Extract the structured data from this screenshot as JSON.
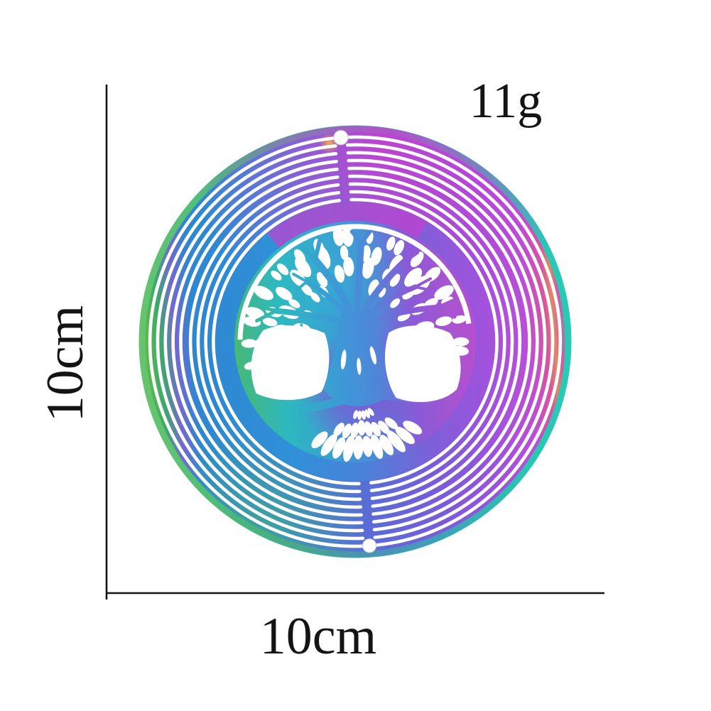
{
  "image": {
    "type": "product-dimension-photo",
    "subject": "Tree of Life rainbow wind spinner"
  },
  "annotations": {
    "height_label": "10cm",
    "width_label": "10cm",
    "weight_label": "11g"
  },
  "colors": {
    "label_text": "#141414",
    "dimension_line": "#141414",
    "rim_left_green": "#59b94a",
    "rim_right_teal": "#2cc8b4",
    "band_blue_left": "#2e86cf",
    "band_purple_right": "#a052dc",
    "band_pink": "#d8549e",
    "top_magenta": "#c83ed0",
    "glint_orange": "#f0a050",
    "tree_teal": "#2db8c0",
    "tree_green": "#49b877",
    "tree_blue": "#3e8ed8",
    "tree_purple": "#9a55d8",
    "cutout_white": "#ffffff"
  }
}
